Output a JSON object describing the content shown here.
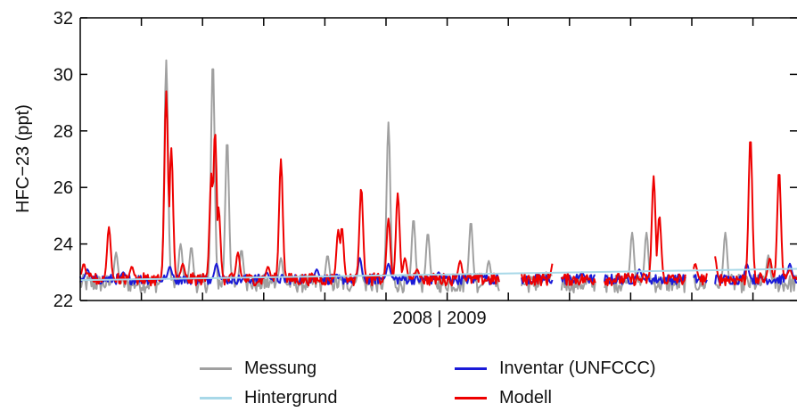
{
  "chart_data": {
    "type": "line",
    "ylabel": "HFC−23 (ppt)",
    "xlabel": "2008 | 2009",
    "ylim": [
      22,
      32
    ],
    "y_ticks": [
      "22",
      "24",
      "26",
      "28",
      "30",
      "32"
    ],
    "x_ticks_count": 12,
    "grid": false,
    "legend_placement": "bottom",
    "series": [
      {
        "name": "Messung",
        "color": "#a0a0a0",
        "baseline": 22.6,
        "noise": 0.32,
        "peaks": [
          [
            0.05,
            23.7
          ],
          [
            0.12,
            30.5
          ],
          [
            0.14,
            24.0
          ],
          [
            0.155,
            23.9
          ],
          [
            0.185,
            30.5
          ],
          [
            0.205,
            27.7
          ],
          [
            0.225,
            23.8
          ],
          [
            0.28,
            23.5
          ],
          [
            0.345,
            23.6
          ],
          [
            0.39,
            23.5
          ],
          [
            0.43,
            28.3
          ],
          [
            0.465,
            24.9
          ],
          [
            0.485,
            24.4
          ],
          [
            0.545,
            24.8
          ],
          [
            0.57,
            23.4
          ],
          [
            0.65,
            23.0
          ],
          [
            0.77,
            24.4
          ],
          [
            0.79,
            24.4
          ],
          [
            0.9,
            24.4
          ],
          [
            0.96,
            23.6
          ]
        ]
      },
      {
        "name": "Hintergrund",
        "color": "#a8d8e8",
        "start": 22.72,
        "end": 23.12
      },
      {
        "name": "Inventar (UNFCCC)",
        "color": "#1a1ad8",
        "baseline": 22.75,
        "noise": 0.18,
        "peaks": [
          [
            0.01,
            23.1
          ],
          [
            0.06,
            23.0
          ],
          [
            0.125,
            23.2
          ],
          [
            0.19,
            23.3
          ],
          [
            0.26,
            23.0
          ],
          [
            0.33,
            23.1
          ],
          [
            0.39,
            23.5
          ],
          [
            0.43,
            23.3
          ],
          [
            0.5,
            23.0
          ],
          [
            0.56,
            22.9
          ],
          [
            0.7,
            23.0
          ],
          [
            0.78,
            23.1
          ],
          [
            0.85,
            23.2
          ],
          [
            0.93,
            23.3
          ],
          [
            0.99,
            23.3
          ]
        ]
      },
      {
        "name": "Modell",
        "color": "#ee0000",
        "baseline": 22.75,
        "noise": 0.22,
        "peaks": [
          [
            0.005,
            23.3
          ],
          [
            0.04,
            24.6
          ],
          [
            0.072,
            23.2
          ],
          [
            0.12,
            29.4
          ],
          [
            0.127,
            27.4
          ],
          [
            0.143,
            23.3
          ],
          [
            0.183,
            26.5
          ],
          [
            0.188,
            28.0
          ],
          [
            0.193,
            25.3
          ],
          [
            0.22,
            23.7
          ],
          [
            0.262,
            23.2
          ],
          [
            0.28,
            27.0
          ],
          [
            0.36,
            24.5
          ],
          [
            0.365,
            24.6
          ],
          [
            0.392,
            26.0
          ],
          [
            0.43,
            24.9
          ],
          [
            0.443,
            25.8
          ],
          [
            0.453,
            23.5
          ],
          [
            0.47,
            23.1
          ],
          [
            0.53,
            23.4
          ],
          [
            0.596,
            23.2
          ],
          [
            0.66,
            23.4
          ],
          [
            0.8,
            26.4
          ],
          [
            0.808,
            25.0
          ],
          [
            0.858,
            23.3
          ],
          [
            0.885,
            23.6
          ],
          [
            0.935,
            27.8
          ],
          [
            0.962,
            23.5
          ],
          [
            0.975,
            26.6
          ],
          [
            0.99,
            23.1
          ]
        ]
      }
    ],
    "gaps": [
      [
        0.585,
        0.615
      ],
      [
        0.66,
        0.67
      ],
      [
        0.72,
        0.73
      ],
      [
        0.845,
        0.855
      ],
      [
        0.875,
        0.885
      ]
    ]
  }
}
